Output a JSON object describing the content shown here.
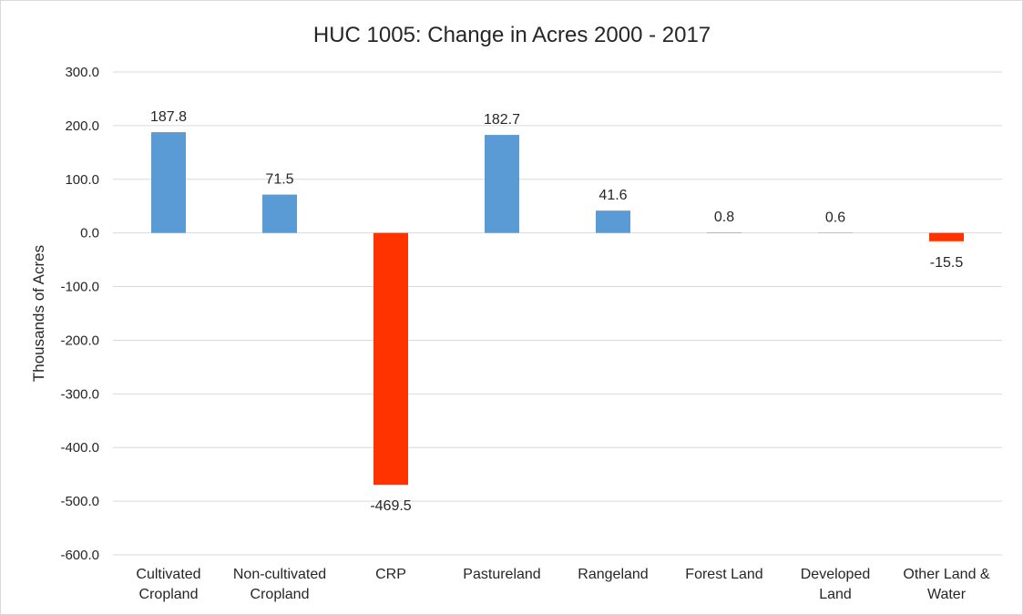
{
  "chart_data": {
    "type": "bar",
    "title": "HUC 1005: Change in Acres 2000 - 2017",
    "xlabel": "",
    "ylabel": "Thousands of Acres",
    "ylim": [
      -600,
      300
    ],
    "yticks": [
      300,
      200,
      100,
      0,
      -100,
      -200,
      -300,
      -400,
      -500,
      -600
    ],
    "ytick_labels": [
      "300.0",
      "200.0",
      "100.0",
      "0.0",
      "-100.0",
      "-200.0",
      "-300.0",
      "-400.0",
      "-500.0",
      "-600.0"
    ],
    "categories": [
      [
        "Cultivated",
        "Cropland"
      ],
      [
        "Non-cultivated",
        "Cropland"
      ],
      [
        "CRP"
      ],
      [
        "Pastureland"
      ],
      [
        "Rangeland"
      ],
      [
        "Forest Land"
      ],
      [
        "Developed",
        "Land"
      ],
      [
        "Other Land &",
        "Water"
      ]
    ],
    "values": [
      187.8,
      71.5,
      -469.5,
      182.7,
      41.6,
      0.8,
      0.6,
      -15.5
    ],
    "value_labels": [
      "187.8",
      "71.5",
      "-469.5",
      "182.7",
      "41.6",
      "0.8",
      "0.6",
      "-15.5"
    ],
    "grid": true,
    "legend": "none",
    "colors": {
      "positive": "#5b9bd5",
      "negative": "#ff3300"
    }
  }
}
